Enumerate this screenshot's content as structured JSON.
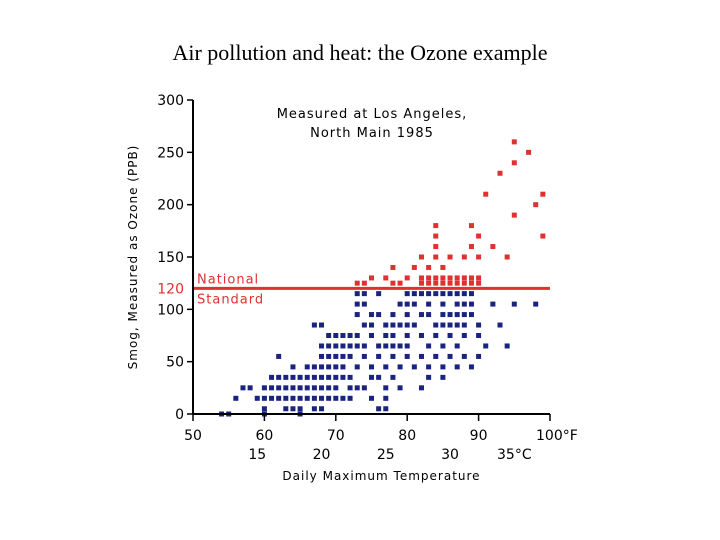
{
  "slide": {
    "title": "Air pollution and heat: the Ozone example"
  },
  "chart_data": {
    "type": "scatter",
    "title": [
      "Measured at Los Angeles,",
      "North Main 1985"
    ],
    "xlabel": "Daily Maximum Temperature",
    "ylabel": "Smog, Measured as Ozone (PPB)",
    "xlim": [
      50,
      100
    ],
    "ylim": [
      0,
      300
    ],
    "x_ticks": [
      50,
      60,
      70,
      80,
      90,
      100
    ],
    "x_tick_labels": [
      "50",
      "60",
      "70",
      "80",
      "90",
      "100°F"
    ],
    "celsius_ticks": [
      15,
      20,
      25,
      30,
      35
    ],
    "celsius_tick_labels": [
      "15",
      "20",
      "25",
      "30",
      "35°C"
    ],
    "celsius_tick_f": [
      59,
      68,
      77,
      86,
      95
    ],
    "y_ticks": [
      0,
      50,
      100,
      150,
      200,
      250,
      300
    ],
    "y_tick_labels": [
      "0",
      "50",
      "100",
      "150",
      "200",
      "250",
      "300"
    ],
    "threshold": {
      "value": 120,
      "label": "120",
      "text": [
        "National",
        "Standard"
      ],
      "color": "#e03030"
    },
    "colors": {
      "below": "#1a237e",
      "above": "#e03030",
      "axis": "#000000"
    },
    "series": [
      {
        "name": "above-standard",
        "points": [
          [
            95,
            260
          ],
          [
            97,
            250
          ],
          [
            95,
            240
          ],
          [
            93,
            230
          ],
          [
            91,
            210
          ],
          [
            95,
            190
          ],
          [
            99,
            210
          ],
          [
            98,
            200
          ],
          [
            99,
            170
          ],
          [
            84,
            180
          ],
          [
            89,
            180
          ],
          [
            84,
            170
          ],
          [
            84,
            160
          ],
          [
            90,
            170
          ],
          [
            84,
            150
          ],
          [
            86,
            150
          ],
          [
            88,
            150
          ],
          [
            89,
            160
          ],
          [
            82,
            150
          ],
          [
            78,
            140
          ],
          [
            81,
            140
          ],
          [
            83,
            140
          ],
          [
            85,
            140
          ],
          [
            90,
            150
          ],
          [
            92,
            160
          ],
          [
            94,
            150
          ],
          [
            75,
            130
          ],
          [
            77,
            130
          ],
          [
            80,
            130
          ],
          [
            82,
            130
          ],
          [
            83,
            130
          ],
          [
            84,
            130
          ],
          [
            85,
            130
          ],
          [
            86,
            130
          ],
          [
            87,
            130
          ],
          [
            88,
            130
          ],
          [
            89,
            130
          ],
          [
            90,
            130
          ],
          [
            73,
            125
          ],
          [
            74,
            125
          ],
          [
            78,
            125
          ],
          [
            79,
            125
          ],
          [
            82,
            125
          ],
          [
            83,
            125
          ],
          [
            84,
            125
          ],
          [
            85,
            125
          ],
          [
            86,
            125
          ],
          [
            87,
            125
          ],
          [
            88,
            125
          ],
          [
            89,
            125
          ],
          [
            90,
            125
          ]
        ]
      },
      {
        "name": "below-standard",
        "points": [
          [
            73,
            115
          ],
          [
            74,
            115
          ],
          [
            76,
            115
          ],
          [
            80,
            115
          ],
          [
            81,
            115
          ],
          [
            82,
            115
          ],
          [
            83,
            115
          ],
          [
            84,
            115
          ],
          [
            85,
            115
          ],
          [
            86,
            115
          ],
          [
            87,
            115
          ],
          [
            88,
            115
          ],
          [
            89,
            115
          ],
          [
            73,
            105
          ],
          [
            74,
            105
          ],
          [
            79,
            105
          ],
          [
            80,
            105
          ],
          [
            81,
            105
          ],
          [
            83,
            105
          ],
          [
            85,
            105
          ],
          [
            87,
            105
          ],
          [
            88,
            105
          ],
          [
            89,
            105
          ],
          [
            92,
            105
          ],
          [
            95,
            105
          ],
          [
            98,
            105
          ],
          [
            73,
            95
          ],
          [
            75,
            95
          ],
          [
            76,
            95
          ],
          [
            78,
            95
          ],
          [
            80,
            95
          ],
          [
            82,
            95
          ],
          [
            83,
            95
          ],
          [
            85,
            95
          ],
          [
            86,
            95
          ],
          [
            87,
            95
          ],
          [
            88,
            95
          ],
          [
            89,
            95
          ],
          [
            67,
            85
          ],
          [
            68,
            85
          ],
          [
            74,
            85
          ],
          [
            75,
            85
          ],
          [
            77,
            85
          ],
          [
            78,
            85
          ],
          [
            79,
            85
          ],
          [
            80,
            85
          ],
          [
            81,
            85
          ],
          [
            84,
            85
          ],
          [
            85,
            85
          ],
          [
            86,
            85
          ],
          [
            87,
            85
          ],
          [
            88,
            85
          ],
          [
            90,
            85
          ],
          [
            93,
            85
          ],
          [
            69,
            75
          ],
          [
            70,
            75
          ],
          [
            71,
            75
          ],
          [
            72,
            75
          ],
          [
            73,
            75
          ],
          [
            75,
            75
          ],
          [
            77,
            75
          ],
          [
            78,
            75
          ],
          [
            80,
            75
          ],
          [
            82,
            75
          ],
          [
            84,
            75
          ],
          [
            86,
            75
          ],
          [
            88,
            75
          ],
          [
            90,
            75
          ],
          [
            68,
            65
          ],
          [
            69,
            65
          ],
          [
            70,
            65
          ],
          [
            71,
            65
          ],
          [
            72,
            65
          ],
          [
            73,
            65
          ],
          [
            74,
            65
          ],
          [
            76,
            65
          ],
          [
            77,
            65
          ],
          [
            78,
            65
          ],
          [
            79,
            65
          ],
          [
            80,
            65
          ],
          [
            83,
            65
          ],
          [
            85,
            65
          ],
          [
            87,
            65
          ],
          [
            91,
            65
          ],
          [
            94,
            65
          ],
          [
            62,
            55
          ],
          [
            68,
            55
          ],
          [
            69,
            55
          ],
          [
            70,
            55
          ],
          [
            71,
            55
          ],
          [
            72,
            55
          ],
          [
            74,
            55
          ],
          [
            76,
            55
          ],
          [
            78,
            55
          ],
          [
            80,
            55
          ],
          [
            82,
            55
          ],
          [
            84,
            55
          ],
          [
            86,
            55
          ],
          [
            88,
            55
          ],
          [
            90,
            55
          ],
          [
            64,
            45
          ],
          [
            66,
            45
          ],
          [
            67,
            45
          ],
          [
            68,
            45
          ],
          [
            69,
            45
          ],
          [
            70,
            45
          ],
          [
            71,
            45
          ],
          [
            73,
            45
          ],
          [
            75,
            45
          ],
          [
            77,
            45
          ],
          [
            79,
            45
          ],
          [
            81,
            45
          ],
          [
            83,
            45
          ],
          [
            85,
            45
          ],
          [
            87,
            45
          ],
          [
            89,
            45
          ],
          [
            61,
            35
          ],
          [
            62,
            35
          ],
          [
            63,
            35
          ],
          [
            64,
            35
          ],
          [
            65,
            35
          ],
          [
            66,
            35
          ],
          [
            67,
            35
          ],
          [
            68,
            35
          ],
          [
            69,
            35
          ],
          [
            70,
            35
          ],
          [
            71,
            35
          ],
          [
            72,
            35
          ],
          [
            75,
            35
          ],
          [
            76,
            35
          ],
          [
            78,
            35
          ],
          [
            83,
            35
          ],
          [
            85,
            35
          ],
          [
            57,
            25
          ],
          [
            58,
            25
          ],
          [
            60,
            25
          ],
          [
            61,
            25
          ],
          [
            62,
            25
          ],
          [
            63,
            25
          ],
          [
            64,
            25
          ],
          [
            65,
            25
          ],
          [
            66,
            25
          ],
          [
            67,
            25
          ],
          [
            68,
            25
          ],
          [
            69,
            25
          ],
          [
            70,
            25
          ],
          [
            72,
            25
          ],
          [
            73,
            25
          ],
          [
            74,
            25
          ],
          [
            77,
            25
          ],
          [
            79,
            25
          ],
          [
            82,
            25
          ],
          [
            56,
            15
          ],
          [
            59,
            15
          ],
          [
            60,
            15
          ],
          [
            61,
            15
          ],
          [
            62,
            15
          ],
          [
            63,
            15
          ],
          [
            64,
            15
          ],
          [
            65,
            15
          ],
          [
            66,
            15
          ],
          [
            67,
            15
          ],
          [
            68,
            15
          ],
          [
            69,
            15
          ],
          [
            70,
            15
          ],
          [
            71,
            15
          ],
          [
            72,
            15
          ],
          [
            75,
            15
          ],
          [
            77,
            15
          ],
          [
            60,
            5
          ],
          [
            63,
            5
          ],
          [
            64,
            5
          ],
          [
            65,
            5
          ],
          [
            67,
            5
          ],
          [
            68,
            5
          ],
          [
            76,
            5
          ],
          [
            77,
            5
          ],
          [
            54,
            0
          ],
          [
            55,
            0
          ],
          [
            60,
            0
          ],
          [
            65,
            0
          ]
        ]
      }
    ]
  }
}
